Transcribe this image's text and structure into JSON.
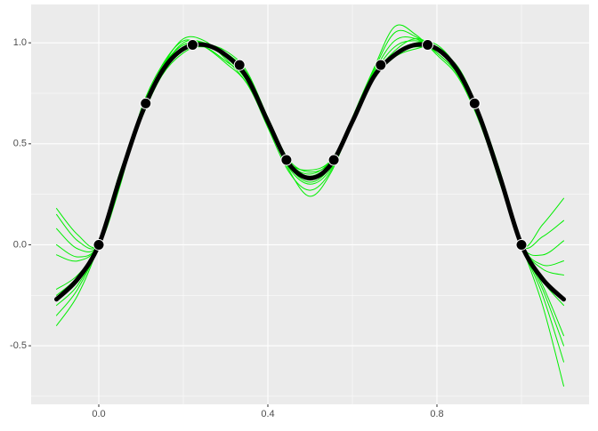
{
  "chart_data": {
    "type": "line",
    "x": [
      -0.1,
      -0.05,
      0,
      0.05,
      0.1,
      0.15,
      0.2,
      0.25,
      0.3,
      0.35,
      0.4,
      0.45,
      0.5,
      0.55,
      0.6,
      0.65,
      0.7,
      0.75,
      0.8,
      0.85,
      0.9,
      0.95,
      1,
      1.05,
      1.1
    ],
    "series": [
      {
        "color": "#00ee00",
        "values": [
          0.18,
          0.05,
          0,
          0.3,
          0.66,
          0.88,
          1.02,
          1.01,
          0.92,
          0.8,
          0.6,
          0.38,
          0.3,
          0.38,
          0.62,
          0.86,
          1.05,
          1.03,
          0.95,
          0.84,
          0.62,
          0.3,
          0,
          -0.3,
          -0.7
        ]
      },
      {
        "color": "#00ee00",
        "values": [
          -0.4,
          -0.25,
          0,
          0.36,
          0.62,
          0.85,
          0.96,
          0.98,
          0.95,
          0.85,
          0.63,
          0.42,
          0.36,
          0.41,
          0.6,
          0.82,
          0.95,
          0.98,
          0.96,
          0.88,
          0.66,
          0.36,
          0,
          0.1,
          0.23
        ]
      },
      {
        "color": "#00ee00",
        "values": [
          0.08,
          -0.02,
          0,
          0.31,
          0.65,
          0.87,
          1.0,
          1.0,
          0.93,
          0.81,
          0.58,
          0.36,
          0.27,
          0.37,
          0.63,
          0.87,
          1.08,
          1.04,
          0.94,
          0.83,
          0.61,
          0.31,
          0,
          -0.25,
          -0.58
        ]
      },
      {
        "color": "#00ee00",
        "values": [
          -0.35,
          -0.22,
          0,
          0.35,
          0.63,
          0.85,
          0.97,
          0.99,
          0.94,
          0.84,
          0.62,
          0.41,
          0.35,
          0.42,
          0.62,
          0.83,
          0.93,
          0.97,
          0.98,
          0.87,
          0.65,
          0.35,
          0,
          -0.05,
          0.02
        ]
      },
      {
        "color": "#00ee00",
        "values": [
          -0.05,
          -0.08,
          0,
          0.32,
          0.64,
          0.87,
          0.99,
          0.98,
          0.91,
          0.82,
          0.6,
          0.39,
          0.31,
          0.39,
          0.61,
          0.84,
          0.98,
          1.01,
          0.97,
          0.85,
          0.63,
          0.32,
          0,
          -0.2,
          -0.45
        ]
      },
      {
        "color": "#00ee00",
        "values": [
          -0.22,
          -0.15,
          0,
          0.34,
          0.64,
          0.86,
          0.97,
          0.99,
          0.95,
          0.84,
          0.62,
          0.4,
          0.34,
          0.41,
          0.61,
          0.82,
          0.93,
          0.99,
          0.98,
          0.86,
          0.64,
          0.34,
          0,
          -0.12,
          -0.15
        ]
      },
      {
        "color": "#00ee00",
        "values": [
          0.15,
          0.02,
          0,
          0.29,
          0.67,
          0.89,
          1.01,
          0.98,
          0.9,
          0.8,
          0.59,
          0.39,
          0.33,
          0.4,
          0.6,
          0.83,
          0.96,
          1.02,
          0.97,
          0.85,
          0.63,
          0.32,
          0,
          -0.18,
          -0.3
        ]
      },
      {
        "color": "#00ee00",
        "values": [
          -0.3,
          -0.2,
          0,
          0.35,
          0.62,
          0.84,
          0.95,
          0.99,
          0.96,
          0.86,
          0.63,
          0.41,
          0.37,
          0.42,
          0.62,
          0.82,
          0.94,
          1.0,
          0.99,
          0.87,
          0.65,
          0.34,
          0,
          0.04,
          0.12
        ]
      },
      {
        "color": "#00ee00",
        "values": [
          0.0,
          -0.06,
          0,
          0.31,
          0.65,
          0.88,
          0.99,
          1.0,
          0.93,
          0.82,
          0.6,
          0.37,
          0.24,
          0.36,
          0.61,
          0.85,
          1.01,
          1.02,
          0.95,
          0.84,
          0.62,
          0.31,
          0,
          -0.22,
          -0.5
        ]
      },
      {
        "color": "#00ee00",
        "values": [
          -0.25,
          -0.16,
          0,
          0.33,
          0.64,
          0.86,
          0.98,
          1.0,
          0.94,
          0.83,
          0.61,
          0.4,
          0.32,
          0.4,
          0.61,
          0.83,
          0.95,
          0.99,
          0.97,
          0.86,
          0.64,
          0.33,
          0,
          -0.1,
          -0.08
        ]
      }
    ],
    "mean": {
      "color": "#000000",
      "values": [
        -0.27,
        -0.17,
        0,
        0.33,
        0.64,
        0.86,
        0.97,
        0.99,
        0.94,
        0.83,
        0.61,
        0.4,
        0.33,
        0.4,
        0.61,
        0.83,
        0.94,
        0.99,
        0.97,
        0.86,
        0.64,
        0.33,
        0,
        -0.17,
        -0.27
      ]
    },
    "points": {
      "color": "#000000",
      "x": [
        0,
        0.111,
        0.222,
        0.333,
        0.444,
        0.556,
        0.667,
        0.778,
        0.889,
        1
      ],
      "y": [
        0,
        0.7,
        0.99,
        0.89,
        0.42,
        0.42,
        0.89,
        0.99,
        0.7,
        0
      ]
    },
    "xlim": [
      -0.16,
      1.16
    ],
    "ylim": [
      -0.79,
      1.19
    ],
    "xticks": [
      {
        "value": 0,
        "label": "0.0"
      },
      0.4,
      0.8
    ],
    "yticks": [
      -0.5,
      {
        "value": 0,
        "label": "0.0"
      },
      0.5,
      {
        "value": 1,
        "label": "1.0"
      }
    ],
    "grid": true
  }
}
